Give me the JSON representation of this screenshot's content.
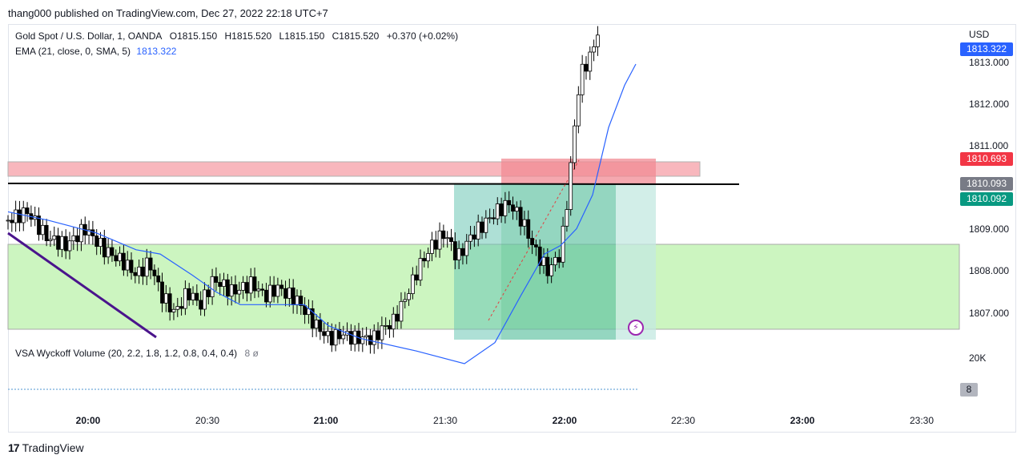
{
  "publisher": "thang000 published on TradingView.com, Dec 27, 2022 22:18 UTC+7",
  "legend": {
    "symbol": "Gold Spot / U.S. Dollar, 1, OANDA",
    "open": "O1815.150",
    "high": "H1815.520",
    "low": "L1815.150",
    "close": "C1815.520",
    "change": "+0.370 (+0.02%)",
    "ema_label": "EMA (21, close, 0, SMA, 5)",
    "ema_value": "1813.322",
    "vsa_label": "VSA Wyckoff Volume (20, 2.2, 1.8, 1.2, 0.8, 0.4, 0.4)",
    "vsa_value": "8  ø"
  },
  "axis": {
    "currency": "USD",
    "price_ticks": [
      "1813.000",
      "1812.000",
      "1811.000",
      "1809.000",
      "1808.000",
      "1807.000"
    ],
    "volume_tick": "20K",
    "volume_tag": "8",
    "time_ticks": [
      "20:00",
      "20:30",
      "21:00",
      "21:30",
      "22:00",
      "22:30",
      "23:00",
      "23:30"
    ]
  },
  "price_tags": {
    "ema": {
      "value": "1813.322",
      "color": "#2962ff"
    },
    "red": {
      "value": "1810.693",
      "color": "#f23645"
    },
    "grey": {
      "value": "1810.093",
      "color": "#787b86"
    },
    "green": {
      "value": "1810.092",
      "color": "#089981"
    }
  },
  "footer": {
    "logo": "TradingView"
  },
  "chart_data": {
    "type": "candlestick",
    "symbol": "Gold Spot / U.S. Dollar",
    "ylim": [
      1806.77,
      1814.25
    ],
    "xlim_minutes": [
      -20,
      220
    ],
    "time_origin": "19:40",
    "levels": {
      "resistance_line": 1810.0,
      "red_zone": [
        1810.2,
        1810.55
      ],
      "green_zone": [
        1806.6,
        1808.65
      ]
    },
    "position_tool": {
      "entry": 1810.08,
      "target_zone_top": 1810.68,
      "stop_zone_bottom": 1806.6
    },
    "candles_sample": [
      {
        "t": "19:40",
        "o": 1809.5,
        "h": 1809.9,
        "l": 1809.2,
        "c": 1809.6
      },
      {
        "t": "20:00",
        "o": 1809.3,
        "h": 1809.5,
        "l": 1808.9,
        "c": 1809.0
      },
      {
        "t": "20:30",
        "o": 1808.4,
        "h": 1808.7,
        "l": 1807.9,
        "c": 1808.0
      },
      {
        "t": "21:00",
        "o": 1806.8,
        "h": 1807.0,
        "l": 1806.7,
        "c": 1806.9
      },
      {
        "t": "21:36",
        "o": 1807.0,
        "h": 1807.4,
        "l": 1806.8,
        "c": 1807.3
      },
      {
        "t": "22:00",
        "o": 1808.7,
        "h": 1809.3,
        "l": 1808.1,
        "c": 1808.6
      },
      {
        "t": "22:08",
        "o": 1813.0,
        "h": 1814.3,
        "l": 1812.9,
        "c": 1814.2
      }
    ],
    "ema_series": [
      {
        "t": "19:40",
        "v": 1809.8
      },
      {
        "t": "20:00",
        "v": 1809.5
      },
      {
        "t": "20:30",
        "v": 1808.8
      },
      {
        "t": "21:00",
        "v": 1807.7
      },
      {
        "t": "21:30",
        "v": 1806.5
      },
      {
        "t": "22:00",
        "v": 1808.5
      },
      {
        "t": "22:10",
        "v": 1812.0
      },
      {
        "t": "22:18",
        "v": 1813.32
      }
    ]
  }
}
